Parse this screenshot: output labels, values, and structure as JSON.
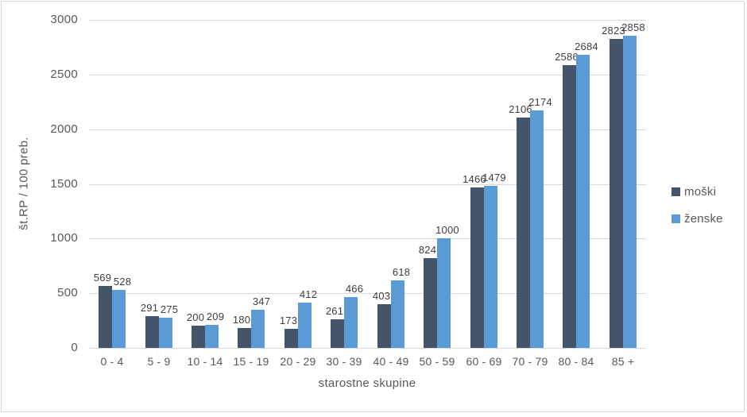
{
  "chart_data": {
    "type": "bar",
    "title": "",
    "xlabel": "starostne skupine",
    "ylabel": "št.RP / 100 preb.",
    "categories": [
      "0 - 4",
      "5 - 9",
      "10 - 14",
      "15 - 19",
      "20 - 29",
      "30 - 39",
      "40 - 49",
      "50 - 59",
      "60 - 69",
      "70 - 79",
      "80 - 84",
      "85 +"
    ],
    "series": [
      {
        "name": "moški",
        "color": "#44546A",
        "values": [
          569,
          291,
          200,
          180,
          173,
          261,
          403,
          824,
          1466,
          2106,
          2586,
          2823
        ]
      },
      {
        "name": "ženske",
        "color": "#5B9BD5",
        "values": [
          528,
          275,
          209,
          347,
          412,
          466,
          618,
          1000,
          1479,
          2174,
          2684,
          2858
        ]
      }
    ],
    "ylim": [
      0,
      3000
    ],
    "yticks": [
      0,
      500,
      1000,
      1500,
      2000,
      2500,
      3000
    ],
    "grid": true,
    "legend_position": "right",
    "data_labels": true,
    "gridline_color": "#D9D9D9",
    "axis_text_color": "#595959",
    "data_label_color": "#404040"
  }
}
